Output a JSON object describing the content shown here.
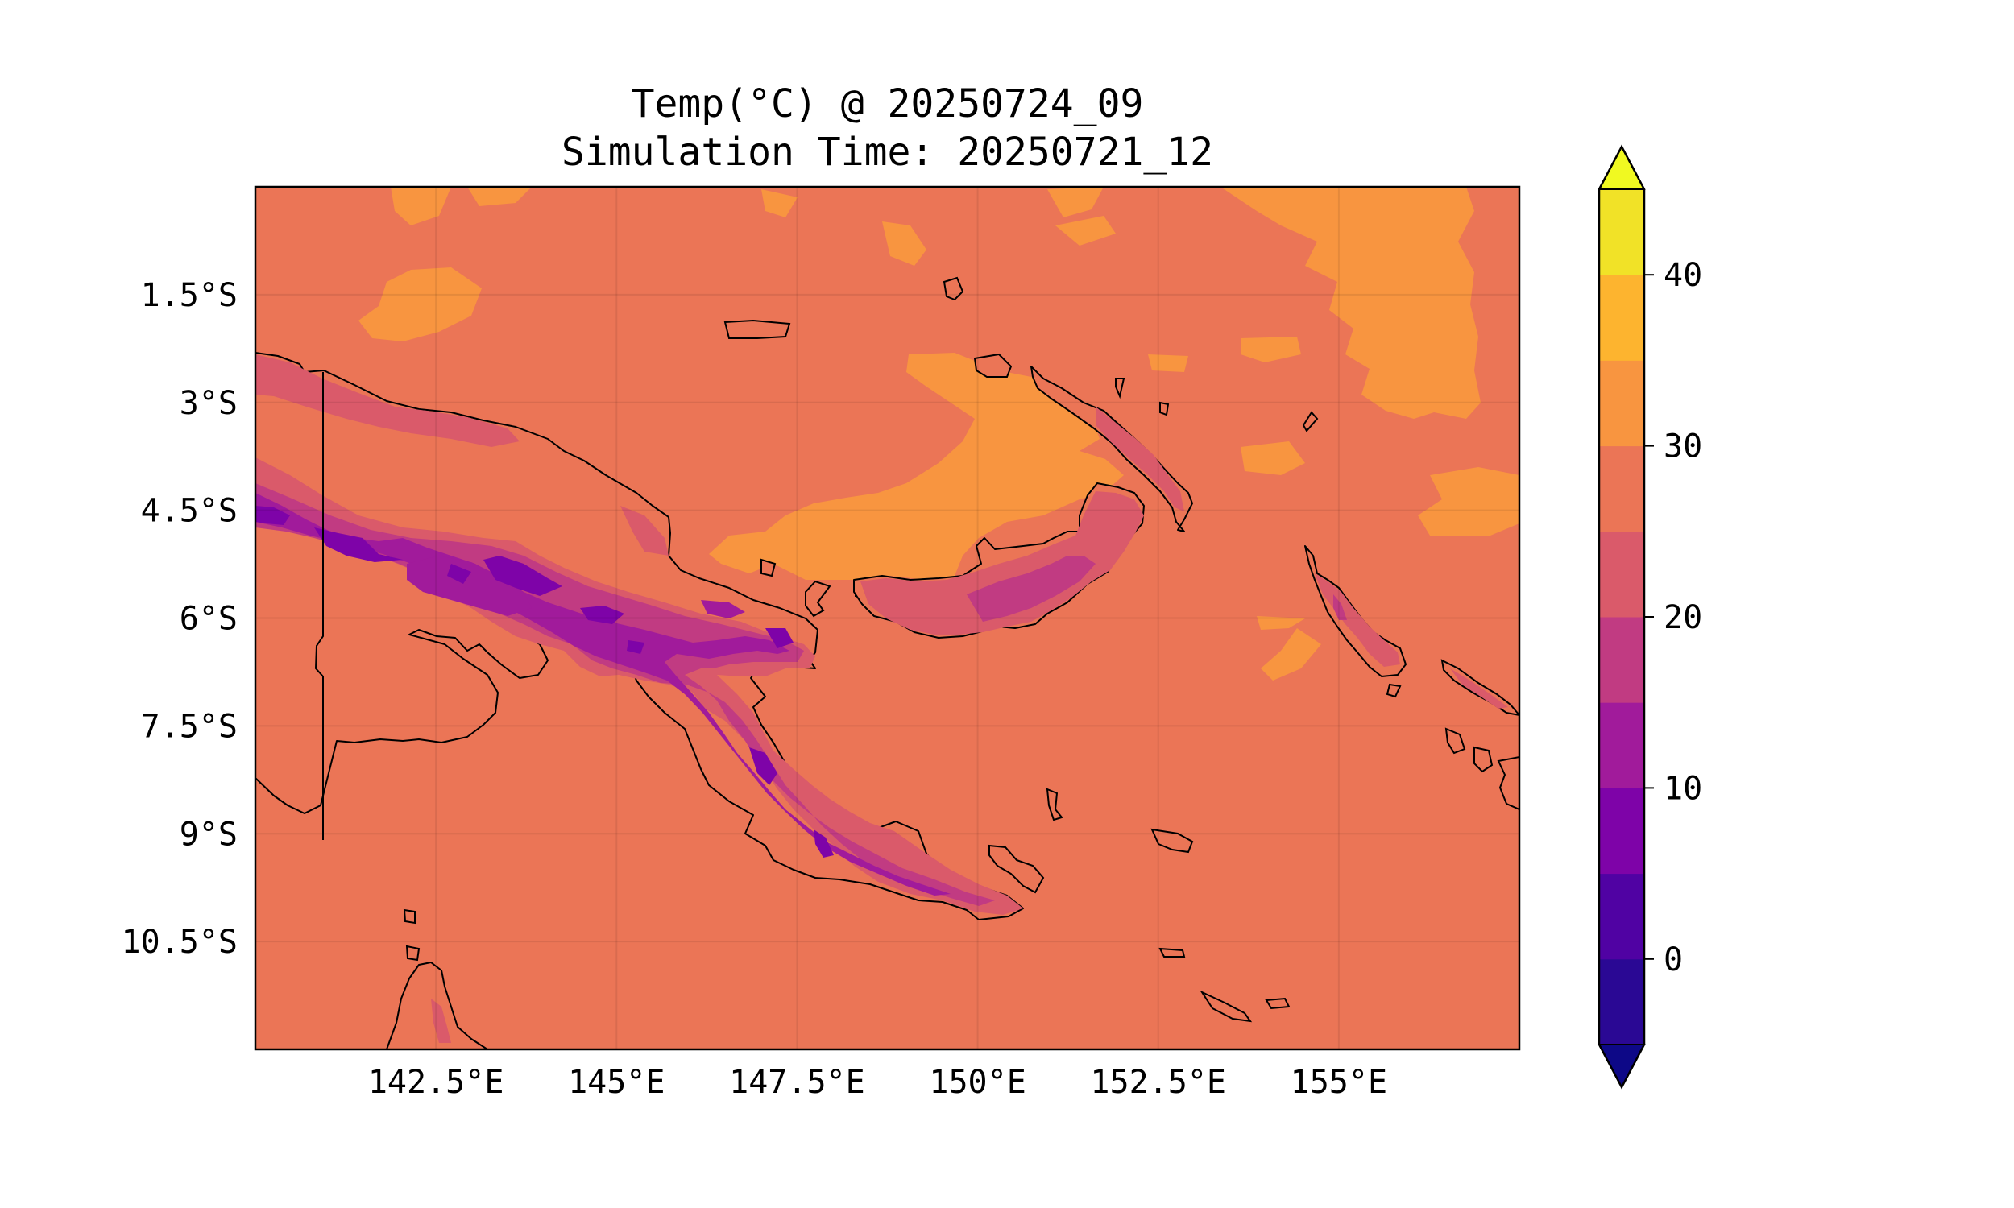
{
  "title": {
    "line1": "Temp(°C) @ 20250724_09",
    "line2": "Simulation Time: 20250721_12"
  },
  "map": {
    "variable": "Temp",
    "units": "°C",
    "valid_time": "20250724_09",
    "simulation_time": "20250721_12",
    "lon_range": [
      140.0,
      157.5
    ],
    "lat_range": [
      -12.0,
      0.0
    ],
    "background_color": "#eb7556",
    "lon_ticks": [
      {
        "value": 142.5,
        "label": "142.5°E"
      },
      {
        "value": 145.0,
        "label": "145°E"
      },
      {
        "value": 147.5,
        "label": "147.5°E"
      },
      {
        "value": 150.0,
        "label": "150°E"
      },
      {
        "value": 152.5,
        "label": "152.5°E"
      },
      {
        "value": 155.0,
        "label": "155°E"
      }
    ],
    "lat_ticks": [
      {
        "value": -1.5,
        "label": "1.5°S"
      },
      {
        "value": -3.0,
        "label": "3°S"
      },
      {
        "value": -4.5,
        "label": "4.5°S"
      },
      {
        "value": -6.0,
        "label": "6°S"
      },
      {
        "value": -7.5,
        "label": "7.5°S"
      },
      {
        "value": -9.0,
        "label": "9°S"
      },
      {
        "value": -10.5,
        "label": "10.5°S"
      }
    ],
    "gridlines": true,
    "coastlines": true
  },
  "colorbar": {
    "levels": [
      -5,
      0,
      5,
      10,
      15,
      20,
      25,
      30,
      35,
      40,
      45
    ],
    "colors": [
      "#2a0894",
      "#5002a3",
      "#7e03a8",
      "#a11b9b",
      "#c13b82",
      "#da5a6a",
      "#eb7556",
      "#f89540",
      "#fdb42f",
      "#f1e227"
    ],
    "under_color": "#0d0887",
    "over_color": "#f0f921",
    "extend": "both",
    "ticks": [
      {
        "value": 0,
        "label": "0"
      },
      {
        "value": 10,
        "label": "10"
      },
      {
        "value": 20,
        "label": "20"
      },
      {
        "value": 30,
        "label": "30"
      },
      {
        "value": 40,
        "label": "40"
      }
    ]
  }
}
